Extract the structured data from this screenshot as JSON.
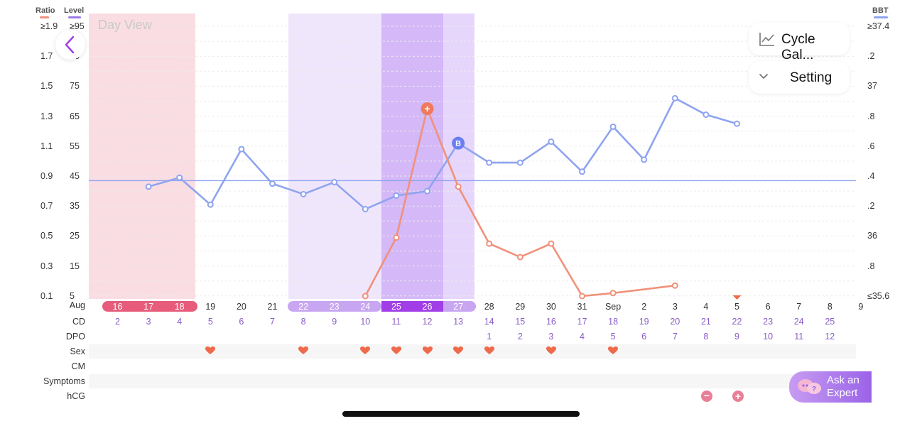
{
  "header": {
    "ratio_label": "Ratio",
    "level_label": "Level",
    "bbt_label": "BBT",
    "day_view": "Day View"
  },
  "buttons": {
    "cycle_gallery": "Cycle Gal...",
    "setting": "Setting",
    "ask_expert_line1": "Ask an",
    "ask_expert_line2": "Expert"
  },
  "axes": {
    "ratio_ticks": [
      "≥1.9",
      "1.7",
      "1.5",
      "1.3",
      "1.1",
      "0.9",
      "0.7",
      "0.5",
      "0.3",
      "0.1"
    ],
    "level_ticks": [
      "≥95",
      "85",
      "75",
      "65",
      "55",
      "45",
      "35",
      "25",
      "15",
      "5"
    ],
    "bbt_ticks": [
      "≥37.4",
      ".2",
      "37",
      ".8",
      ".6",
      ".4",
      ".2",
      "36",
      ".8",
      "≤35.6"
    ]
  },
  "row_labels": {
    "date_row": "Aug",
    "cd": "CD",
    "dpo": "DPO",
    "sex": "Sex",
    "cm": "CM",
    "symptoms": "Symptoms",
    "hcg": "hCG"
  },
  "dates": [
    "16",
    "17",
    "18",
    "19",
    "20",
    "21",
    "22",
    "23",
    "24",
    "25",
    "26",
    "27",
    "28",
    "29",
    "30",
    "31",
    "Sep",
    "2",
    "3",
    "4",
    "5",
    "6",
    "7",
    "8",
    "9"
  ],
  "cd": [
    "2",
    "3",
    "4",
    "5",
    "6",
    "7",
    "8",
    "9",
    "10",
    "11",
    "12",
    "13",
    "14",
    "15",
    "16",
    "17",
    "18",
    "19",
    "20",
    "21",
    "22",
    "23",
    "24",
    "25"
  ],
  "dpo": [
    "1",
    "2",
    "3",
    "4",
    "5",
    "6",
    "7",
    "8",
    "9",
    "10",
    "11",
    "12"
  ],
  "sex_markers": [
    "heart-icon"
  ],
  "hcg_markers": [
    "minus-icon",
    "plus-icon"
  ],
  "colors": {
    "period": "#e65c7a",
    "fertile_light": "#c9a6f2",
    "fertile_dark": "#a13ee8",
    "bbt_line": "#8fa4f0",
    "lh_line": "#f0917a",
    "heart": "#ef6a4a",
    "cd_text": "#8a5cc9"
  },
  "chart_data": {
    "type": "line",
    "x": [
      "16",
      "17",
      "18",
      "19",
      "20",
      "21",
      "22",
      "23",
      "24",
      "25",
      "26",
      "27",
      "28",
      "29",
      "30",
      "31",
      "Sep",
      "2",
      "3",
      "4",
      "5"
    ],
    "series": [
      {
        "values_unit": "BBT",
        "points": [
          [
            1,
            36.33
          ],
          [
            2,
            36.39
          ],
          [
            3,
            36.21
          ],
          [
            4,
            36.58
          ],
          [
            5,
            36.35
          ],
          [
            6,
            36.28
          ],
          [
            7,
            36.36
          ],
          [
            8,
            36.18
          ],
          [
            9,
            36.27
          ],
          [
            10,
            36.3
          ],
          [
            11,
            36.62
          ],
          [
            12,
            36.49
          ],
          [
            13,
            36.49
          ],
          [
            14,
            36.63
          ],
          [
            15,
            36.43
          ],
          [
            16,
            36.73
          ],
          [
            17,
            36.51
          ],
          [
            18,
            36.92
          ],
          [
            19,
            36.81
          ],
          [
            20,
            36.75
          ]
        ],
        "markers": {
          "11": "B"
        }
      },
      {
        "values_unit": "Ratio",
        "points": [
          [
            8,
            0.1
          ],
          [
            9,
            0.49
          ],
          [
            10,
            1.35
          ],
          [
            11,
            0.83
          ],
          [
            12,
            0.45
          ],
          [
            13,
            0.36
          ],
          [
            14,
            0.45
          ],
          [
            15,
            0.1
          ],
          [
            16,
            0.12
          ],
          [
            18,
            0.17
          ]
        ],
        "markers": {
          "10": "+"
        }
      }
    ],
    "reference_line": 36.37,
    "ratio_range": [
      0.1,
      1.9
    ],
    "bbt_range": [
      35.6,
      37.4
    ],
    "level_range": [
      5,
      95
    ]
  }
}
